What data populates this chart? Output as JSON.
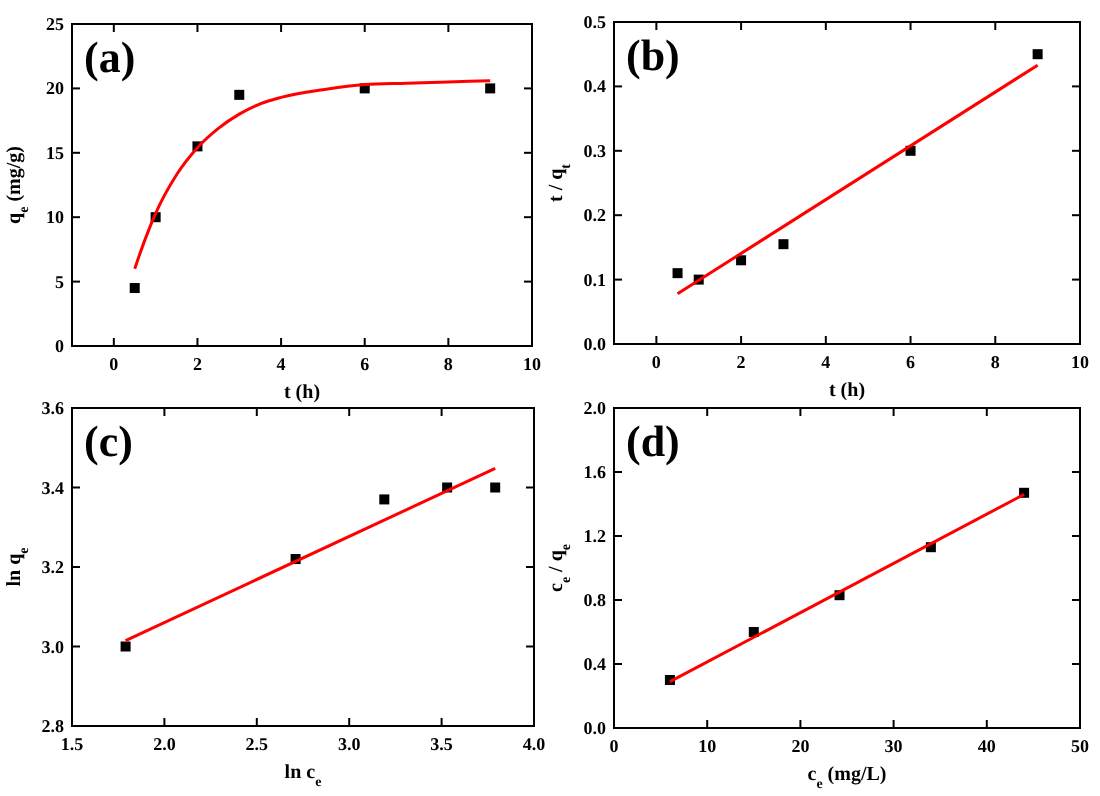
{
  "chart_data": [
    {
      "type": "scatter",
      "annotations": [
        "(a)"
      ],
      "xlabel": "t (h)",
      "ylabel": "q$_{e}$ (mg/g)",
      "xlim": [
        -1,
        10
      ],
      "xticks": [
        0,
        2,
        4,
        6,
        8,
        10
      ],
      "ylim": [
        0,
        25
      ],
      "yticks": [
        0,
        5,
        10,
        15,
        20,
        25
      ],
      "grid": false,
      "series": [
        {
          "type": "scatter",
          "marker": "square",
          "color": "#000000",
          "x": [
            0.5,
            1,
            2,
            3,
            6,
            9
          ],
          "values": [
            4.5,
            10,
            15.5,
            19.5,
            20,
            20
          ]
        },
        {
          "type": "line",
          "marker": "none",
          "line_style": "solid",
          "color": "#ff0000",
          "x": [
            0.5,
            0.75,
            1,
            1.5,
            2,
            2.5,
            3,
            3.5,
            4,
            5,
            6,
            7,
            8,
            9
          ],
          "values": [
            6.0,
            8.3,
            10.3,
            13.3,
            15.4,
            16.9,
            18.0,
            18.8,
            19.3,
            19.9,
            20.3,
            20.4,
            20.5,
            20.6
          ]
        }
      ]
    },
    {
      "type": "scatter",
      "annotations": [
        "(b)"
      ],
      "xlabel": "t (h)",
      "ylabel": "t / q$_{t}$",
      "xlim": [
        -1,
        10
      ],
      "xticks": [
        0,
        2,
        4,
        6,
        8,
        10
      ],
      "ylim": [
        0,
        0.5
      ],
      "yticks": [
        {
          "value": 0,
          "label": "0.0"
        },
        0.1,
        0.2,
        0.3,
        0.4,
        0.5
      ],
      "grid": false,
      "series": [
        {
          "type": "scatter",
          "marker": "square",
          "color": "#000000",
          "x": [
            0.5,
            1,
            2,
            3,
            6,
            9
          ],
          "values": [
            0.11,
            0.1,
            0.13,
            0.155,
            0.3,
            0.45
          ]
        },
        {
          "type": "line",
          "marker": "none",
          "line_style": "solid",
          "color": "#ff0000",
          "x": [
            0.5,
            9
          ],
          "values": [
            0.078,
            0.433
          ]
        }
      ]
    },
    {
      "type": "scatter",
      "annotations": [
        "(c)"
      ],
      "xlabel": "ln c$_{e}$",
      "ylabel": "ln q$_{e}$",
      "xlim": [
        1.5,
        4.0
      ],
      "xticks": [
        1.5,
        {
          "value": 2,
          "label": "2.0"
        },
        2.5,
        {
          "value": 3,
          "label": "3.0"
        },
        3.5,
        {
          "value": 4,
          "label": "4.0"
        }
      ],
      "ylim": [
        2.8,
        3.6
      ],
      "yticks": [
        2.8,
        {
          "value": 3,
          "label": "3.0"
        },
        3.2,
        3.4,
        3.6
      ],
      "grid": false,
      "series": [
        {
          "type": "scatter",
          "marker": "square",
          "color": "#000000",
          "x": [
            1.79,
            2.71,
            3.19,
            3.53,
            3.79
          ],
          "values": [
            3.0,
            3.22,
            3.37,
            3.4,
            3.4
          ]
        },
        {
          "type": "line",
          "marker": "none",
          "line_style": "solid",
          "color": "#ff0000",
          "x": [
            1.79,
            3.79
          ],
          "values": [
            3.015,
            3.448
          ]
        }
      ]
    },
    {
      "type": "scatter",
      "annotations": [
        "(d)"
      ],
      "xlabel": "c$_{e}$ (mg/L)",
      "ylabel": "c$_{e}$ / q$_{e}$",
      "xlim": [
        0,
        50
      ],
      "xticks": [
        0,
        10,
        20,
        30,
        40,
        50
      ],
      "ylim": [
        0,
        2.0
      ],
      "yticks": [
        {
          "value": 0,
          "label": "0.0"
        },
        0.4,
        0.8,
        1.2,
        1.6,
        {
          "value": 2,
          "label": "2.0"
        }
      ],
      "grid": false,
      "series": [
        {
          "type": "scatter",
          "marker": "square",
          "color": "#000000",
          "x": [
            6,
            15,
            24.2,
            34,
            44
          ],
          "values": [
            0.3,
            0.6,
            0.83,
            1.13,
            1.47
          ]
        },
        {
          "type": "line",
          "marker": "none",
          "line_style": "solid",
          "color": "#ff0000",
          "x": [
            6,
            44
          ],
          "values": [
            0.29,
            1.46
          ]
        }
      ]
    }
  ]
}
